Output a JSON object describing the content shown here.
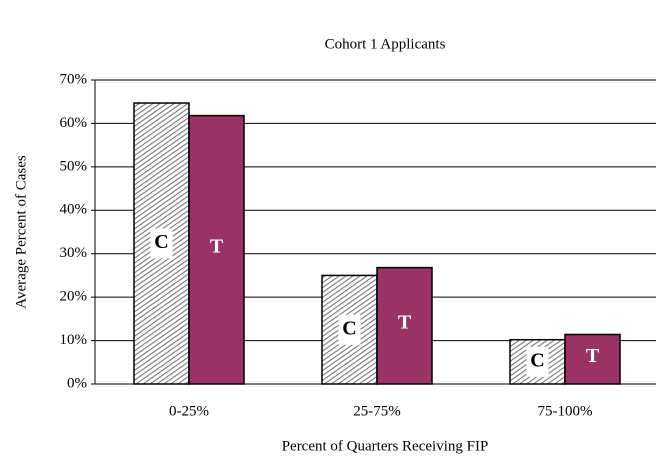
{
  "chart_data": {
    "type": "bar",
    "title": "Cohort 1 Applicants",
    "x_label": "Percent of Quarters Receiving FIP",
    "y_label": "Average Percent of Cases",
    "categories": [
      "0-25%",
      "25-75%",
      "75-100%"
    ],
    "series": [
      {
        "name": "C",
        "color": "#999999",
        "values": [
          64.7,
          25,
          10.2
        ]
      },
      {
        "name": "T",
        "color": "#993366",
        "values": [
          61.8,
          26.8,
          11.4
        ]
      }
    ],
    "ylim": [
      0,
      70
    ],
    "yticks": [
      {
        "value": 0,
        "label": "0%"
      },
      {
        "value": 10,
        "label": "10%"
      },
      {
        "value": 20,
        "label": "20%"
      },
      {
        "value": 30,
        "label": "30%"
      },
      {
        "value": 40,
        "label": "40%"
      },
      {
        "value": 50,
        "label": "50%"
      },
      {
        "value": 60,
        "label": "60%"
      },
      {
        "value": 70,
        "label": "70%"
      }
    ],
    "grid": true
  }
}
